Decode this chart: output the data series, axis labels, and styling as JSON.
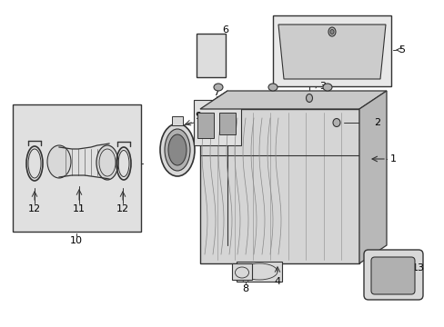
{
  "background_color": "#ffffff",
  "line_color": "#333333",
  "label_color": "#000000",
  "fig_width": 4.89,
  "fig_height": 3.6,
  "dpi": 100,
  "gray_light": "#d8d8d8",
  "gray_med": "#b0b0b0",
  "gray_dark": "#888888",
  "inset_bg": "#e0e0e0"
}
